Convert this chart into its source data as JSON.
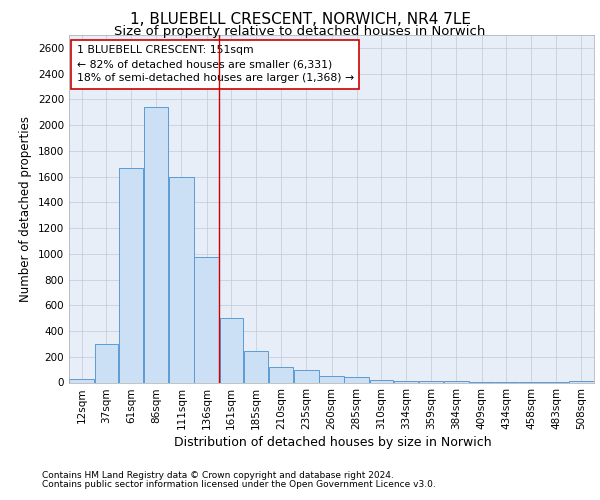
{
  "title_line1": "1, BLUEBELL CRESCENT, NORWICH, NR4 7LE",
  "title_line2": "Size of property relative to detached houses in Norwich",
  "xlabel": "Distribution of detached houses by size in Norwich",
  "ylabel": "Number of detached properties",
  "footer_line1": "Contains HM Land Registry data © Crown copyright and database right 2024.",
  "footer_line2": "Contains public sector information licensed under the Open Government Licence v3.0.",
  "annotation_line1": "1 BLUEBELL CRESCENT: 151sqm",
  "annotation_line2": "← 82% of detached houses are smaller (6,331)",
  "annotation_line3": "18% of semi-detached houses are larger (1,368) →",
  "bar_categories": [
    "12sqm",
    "37sqm",
    "61sqm",
    "86sqm",
    "111sqm",
    "136sqm",
    "161sqm",
    "185sqm",
    "210sqm",
    "235sqm",
    "260sqm",
    "285sqm",
    "310sqm",
    "334sqm",
    "359sqm",
    "384sqm",
    "409sqm",
    "434sqm",
    "458sqm",
    "483sqm",
    "508sqm"
  ],
  "bar_left_edges": [
    12,
    37,
    61,
    86,
    111,
    136,
    161,
    185,
    210,
    235,
    260,
    285,
    310,
    334,
    359,
    384,
    409,
    434,
    458,
    483,
    508
  ],
  "bar_widths": [
    25,
    24,
    25,
    25,
    25,
    25,
    24,
    25,
    25,
    25,
    25,
    25,
    24,
    25,
    25,
    25,
    25,
    24,
    25,
    25,
    25
  ],
  "bar_heights": [
    25,
    300,
    1670,
    2140,
    1600,
    975,
    500,
    245,
    120,
    100,
    50,
    45,
    20,
    15,
    10,
    8,
    5,
    5,
    3,
    2,
    10
  ],
  "bar_face_color": "#cce0f5",
  "bar_edge_color": "#5b9bd5",
  "vline_x": 161,
  "vline_color": "#cc0000",
  "ylim": [
    0,
    2700
  ],
  "yticks": [
    0,
    200,
    400,
    600,
    800,
    1000,
    1200,
    1400,
    1600,
    1800,
    2000,
    2200,
    2400,
    2600
  ],
  "grid_color": "#c0c8d8",
  "bg_color": "#e8eef8",
  "title_fontsize": 11,
  "subtitle_fontsize": 9.5,
  "axis_label_fontsize": 8.5,
  "tick_fontsize": 7.5,
  "annotation_fontsize": 7.8,
  "footer_fontsize": 6.5
}
